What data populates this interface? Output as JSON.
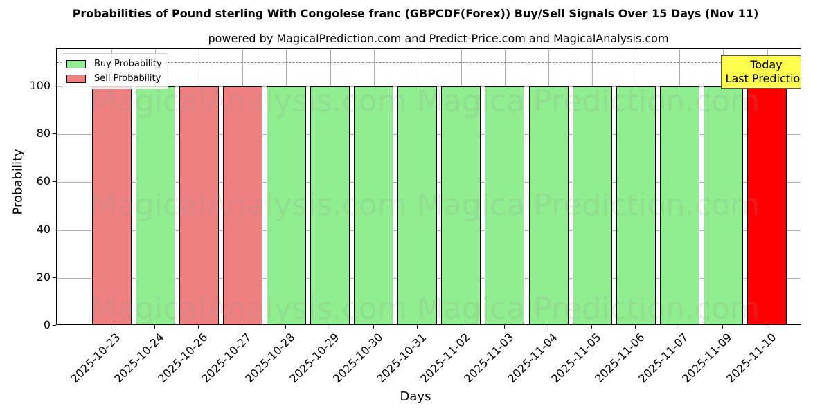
{
  "chart_data": {
    "type": "bar",
    "title": "Probabilities of Pound sterling With Congolese franc (GBPCDF(Forex)) Buy/Sell Signals Over 15 Days (Nov 11)",
    "subtitle": "powered by MagicalPrediction.com and Predict-Price.com and MagicalAnalysis.com",
    "xlabel": "Days",
    "ylabel": "Probability",
    "ylim": [
      0,
      115
    ],
    "yticks": [
      0,
      20,
      40,
      60,
      80,
      100
    ],
    "grid": true,
    "legend_position": "upper left",
    "reference_line": {
      "y": 110,
      "style": "dashed",
      "color": "#808080"
    },
    "categories": [
      "2025-10-23",
      "2025-10-24",
      "2025-10-26",
      "2025-10-27",
      "2025-10-28",
      "2025-10-29",
      "2025-10-30",
      "2025-10-31",
      "2025-11-02",
      "2025-11-03",
      "2025-11-04",
      "2025-11-05",
      "2025-11-06",
      "2025-11-07",
      "2025-11-09",
      "2025-11-10"
    ],
    "signals": [
      "Sell",
      "Buy",
      "Sell",
      "Sell",
      "Buy",
      "Buy",
      "Buy",
      "Buy",
      "Buy",
      "Buy",
      "Buy",
      "Buy",
      "Buy",
      "Buy",
      "Buy",
      "Sell"
    ],
    "series": [
      {
        "name": "Buy Probability",
        "color": "#90ee90",
        "values": [
          0,
          100,
          0,
          0,
          100,
          100,
          100,
          100,
          100,
          100,
          100,
          100,
          100,
          100,
          100,
          0
        ]
      },
      {
        "name": "Sell Probability",
        "color": "#f08080",
        "values": [
          100,
          0,
          100,
          100,
          0,
          0,
          0,
          0,
          0,
          0,
          0,
          0,
          0,
          0,
          0,
          100
        ]
      }
    ],
    "highlight": {
      "index": 15,
      "color": "#ff0000",
      "label": "Today\nLast Prediction"
    },
    "annotation": {
      "line1": "Today",
      "line2": "Last Prediction",
      "color": "#ffff4d"
    },
    "watermarks": [
      "MagicalAnalysis.com",
      "MagicalPrediction.com"
    ]
  },
  "legend": {
    "buy": "Buy Probability",
    "sell": "Sell Probability"
  },
  "colors": {
    "buy": "#90ee90",
    "sell": "#f08080",
    "today": "#ff0000",
    "annotation": "#ffff4d"
  }
}
